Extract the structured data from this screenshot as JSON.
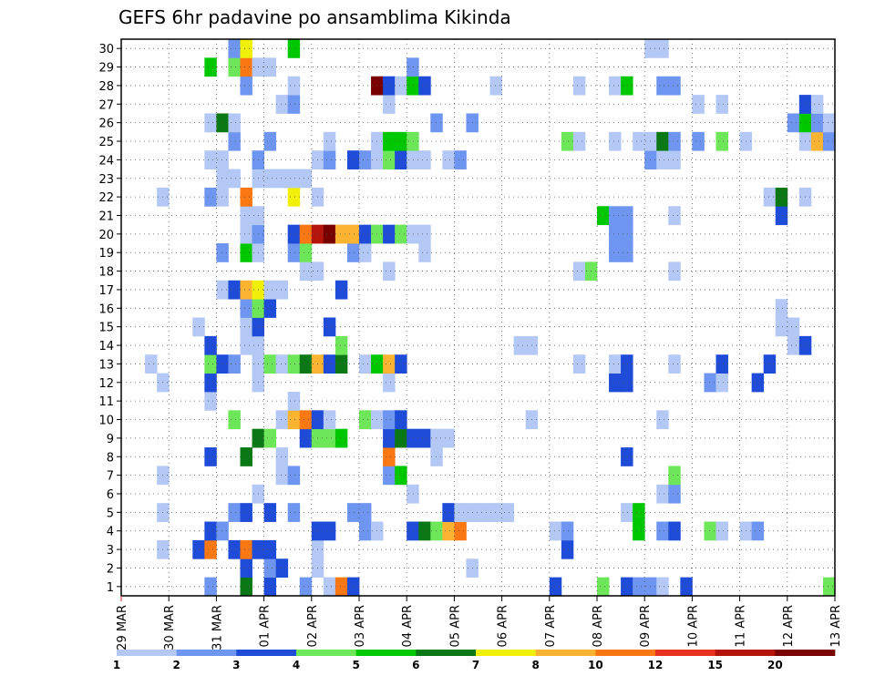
{
  "chart_data": {
    "type": "heatmap",
    "title": "GEFS 6hr padavine po ansamblima Kikinda",
    "xlabel": "",
    "ylabel": "",
    "x_ticks": [
      "29 MAR",
      "30 MAR",
      "31 MAR",
      "01 APR",
      "02 APR",
      "03 APR",
      "04 APR",
      "05 APR",
      "06 APR",
      "07 APR",
      "08 APR",
      "09 APR",
      "10 APR",
      "11 APR",
      "12 APR",
      "13 APR"
    ],
    "y_ticks": [
      1,
      2,
      3,
      4,
      5,
      6,
      7,
      8,
      9,
      10,
      11,
      12,
      13,
      14,
      15,
      16,
      17,
      18,
      19,
      20,
      21,
      22,
      23,
      24,
      25,
      26,
      27,
      28,
      29,
      30
    ],
    "xlim": [
      0,
      60
    ],
    "ylim": [
      0.5,
      30.5
    ],
    "grid": true,
    "legend": "colorbar-bottom",
    "colorbar": {
      "boundaries": [
        "1",
        "2",
        "3",
        "4",
        "5",
        "6",
        "7",
        "8",
        "10",
        "12",
        "15",
        "20"
      ],
      "colors": [
        "#b4c8f5",
        "#6e96f0",
        "#1e4bd7",
        "#6ee65a",
        "#00c800",
        "#0a7814",
        "#f0f00a",
        "#fab432",
        "#fa7814",
        "#e6321e",
        "#b4140a",
        "#780000"
      ]
    },
    "cells": [
      [
        1,
        8,
        2
      ],
      [
        1,
        11,
        6
      ],
      [
        1,
        13,
        3
      ],
      [
        1,
        16,
        2
      ],
      [
        1,
        18,
        1
      ],
      [
        1,
        19,
        9
      ],
      [
        1,
        20,
        3
      ],
      [
        1,
        37,
        3
      ],
      [
        1,
        41,
        4
      ],
      [
        1,
        43,
        3
      ],
      [
        1,
        44,
        2
      ],
      [
        1,
        45,
        2
      ],
      [
        1,
        46,
        1
      ],
      [
        1,
        48,
        3
      ],
      [
        1,
        60,
        4
      ],
      [
        2,
        11,
        3
      ],
      [
        2,
        13,
        2
      ],
      [
        2,
        14,
        3
      ],
      [
        2,
        17,
        1
      ],
      [
        2,
        30,
        1
      ],
      [
        3,
        4,
        1
      ],
      [
        3,
        7,
        3
      ],
      [
        3,
        8,
        9
      ],
      [
        3,
        10,
        3
      ],
      [
        3,
        11,
        9
      ],
      [
        3,
        12,
        3
      ],
      [
        3,
        13,
        3
      ],
      [
        3,
        17,
        1
      ],
      [
        3,
        38,
        3
      ],
      [
        4,
        8,
        3
      ],
      [
        4,
        9,
        2
      ],
      [
        4,
        17,
        3
      ],
      [
        4,
        18,
        3
      ],
      [
        4,
        21,
        2
      ],
      [
        4,
        22,
        1
      ],
      [
        4,
        25,
        3
      ],
      [
        4,
        26,
        6
      ],
      [
        4,
        27,
        4
      ],
      [
        4,
        28,
        8
      ],
      [
        4,
        29,
        9
      ],
      [
        4,
        37,
        1
      ],
      [
        4,
        38,
        2
      ],
      [
        4,
        44,
        5
      ],
      [
        4,
        46,
        2
      ],
      [
        4,
        47,
        3
      ],
      [
        4,
        50,
        4
      ],
      [
        4,
        51,
        1
      ],
      [
        4,
        53,
        1
      ],
      [
        4,
        54,
        2
      ],
      [
        5,
        4,
        1
      ],
      [
        5,
        10,
        2
      ],
      [
        5,
        11,
        3
      ],
      [
        5,
        13,
        3
      ],
      [
        5,
        15,
        2
      ],
      [
        5,
        20,
        2
      ],
      [
        5,
        21,
        2
      ],
      [
        5,
        28,
        3
      ],
      [
        5,
        29,
        1
      ],
      [
        5,
        30,
        1
      ],
      [
        5,
        31,
        1
      ],
      [
        5,
        32,
        1
      ],
      [
        5,
        33,
        1
      ],
      [
        5,
        43,
        1
      ],
      [
        5,
        44,
        5
      ],
      [
        6,
        12,
        1
      ],
      [
        6,
        25,
        1
      ],
      [
        6,
        46,
        1
      ],
      [
        6,
        47,
        2
      ],
      [
        7,
        4,
        1
      ],
      [
        7,
        14,
        1
      ],
      [
        7,
        15,
        2
      ],
      [
        7,
        23,
        2
      ],
      [
        7,
        24,
        5
      ],
      [
        7,
        47,
        4
      ],
      [
        8,
        8,
        3
      ],
      [
        8,
        11,
        6
      ],
      [
        8,
        14,
        1
      ],
      [
        8,
        23,
        9
      ],
      [
        8,
        27,
        1
      ],
      [
        8,
        43,
        3
      ],
      [
        9,
        12,
        6
      ],
      [
        9,
        13,
        4
      ],
      [
        9,
        16,
        3
      ],
      [
        9,
        17,
        4
      ],
      [
        9,
        18,
        4
      ],
      [
        9,
        19,
        5
      ],
      [
        9,
        23,
        3
      ],
      [
        9,
        24,
        6
      ],
      [
        9,
        25,
        3
      ],
      [
        9,
        26,
        3
      ],
      [
        9,
        27,
        1
      ],
      [
        9,
        28,
        1
      ],
      [
        10,
        10,
        4
      ],
      [
        10,
        14,
        1
      ],
      [
        10,
        15,
        8
      ],
      [
        10,
        16,
        9
      ],
      [
        10,
        17,
        3
      ],
      [
        10,
        18,
        1
      ],
      [
        10,
        21,
        4
      ],
      [
        10,
        22,
        1
      ],
      [
        10,
        23,
        2
      ],
      [
        10,
        24,
        3
      ],
      [
        10,
        35,
        1
      ],
      [
        10,
        46,
        1
      ],
      [
        11,
        8,
        1
      ],
      [
        11,
        15,
        1
      ],
      [
        12,
        4,
        1
      ],
      [
        12,
        8,
        3
      ],
      [
        12,
        12,
        1
      ],
      [
        12,
        23,
        1
      ],
      [
        12,
        42,
        3
      ],
      [
        12,
        43,
        3
      ],
      [
        12,
        50,
        2
      ],
      [
        12,
        51,
        1
      ],
      [
        12,
        54,
        3
      ],
      [
        13,
        3,
        1
      ],
      [
        13,
        8,
        4
      ],
      [
        13,
        9,
        3
      ],
      [
        13,
        10,
        2
      ],
      [
        13,
        12,
        1
      ],
      [
        13,
        13,
        4
      ],
      [
        13,
        14,
        1
      ],
      [
        13,
        15,
        4
      ],
      [
        13,
        16,
        6
      ],
      [
        13,
        17,
        8
      ],
      [
        13,
        18,
        3
      ],
      [
        13,
        19,
        6
      ],
      [
        13,
        21,
        1
      ],
      [
        13,
        22,
        5
      ],
      [
        13,
        23,
        8
      ],
      [
        13,
        24,
        3
      ],
      [
        13,
        39,
        1
      ],
      [
        13,
        42,
        1
      ],
      [
        13,
        43,
        3
      ],
      [
        13,
        47,
        1
      ],
      [
        13,
        51,
        3
      ],
      [
        13,
        55,
        3
      ],
      [
        14,
        8,
        3
      ],
      [
        14,
        11,
        1
      ],
      [
        14,
        12,
        1
      ],
      [
        14,
        19,
        4
      ],
      [
        14,
        34,
        1
      ],
      [
        14,
        35,
        1
      ],
      [
        14,
        57,
        1
      ],
      [
        14,
        58,
        3
      ],
      [
        15,
        7,
        1
      ],
      [
        15,
        11,
        1
      ],
      [
        15,
        12,
        3
      ],
      [
        15,
        18,
        3
      ],
      [
        15,
        56,
        1
      ],
      [
        15,
        57,
        1
      ],
      [
        16,
        11,
        2
      ],
      [
        16,
        12,
        4
      ],
      [
        16,
        13,
        3
      ],
      [
        16,
        56,
        1
      ],
      [
        17,
        9,
        1
      ],
      [
        17,
        10,
        3
      ],
      [
        17,
        11,
        8
      ],
      [
        17,
        12,
        7
      ],
      [
        17,
        13,
        1
      ],
      [
        17,
        14,
        1
      ],
      [
        17,
        19,
        3
      ],
      [
        18,
        16,
        1
      ],
      [
        18,
        17,
        1
      ],
      [
        18,
        23,
        1
      ],
      [
        18,
        39,
        1
      ],
      [
        18,
        40,
        4
      ],
      [
        18,
        47,
        1
      ],
      [
        19,
        9,
        2
      ],
      [
        19,
        11,
        5
      ],
      [
        19,
        12,
        1
      ],
      [
        19,
        15,
        2
      ],
      [
        19,
        16,
        4
      ],
      [
        19,
        20,
        2
      ],
      [
        19,
        21,
        1
      ],
      [
        19,
        26,
        1
      ],
      [
        19,
        42,
        2
      ],
      [
        19,
        43,
        2
      ],
      [
        20,
        11,
        1
      ],
      [
        20,
        12,
        2
      ],
      [
        20,
        15,
        3
      ],
      [
        20,
        16,
        9
      ],
      [
        20,
        17,
        11
      ],
      [
        20,
        18,
        12
      ],
      [
        20,
        19,
        8
      ],
      [
        20,
        20,
        8
      ],
      [
        20,
        21,
        3
      ],
      [
        20,
        22,
        4
      ],
      [
        20,
        23,
        3
      ],
      [
        20,
        24,
        4
      ],
      [
        20,
        25,
        1
      ],
      [
        20,
        26,
        1
      ],
      [
        20,
        42,
        2
      ],
      [
        20,
        43,
        2
      ],
      [
        21,
        11,
        1
      ],
      [
        21,
        12,
        1
      ],
      [
        21,
        41,
        5
      ],
      [
        21,
        42,
        2
      ],
      [
        21,
        43,
        2
      ],
      [
        21,
        47,
        1
      ],
      [
        21,
        56,
        3
      ],
      [
        22,
        4,
        1
      ],
      [
        22,
        8,
        2
      ],
      [
        22,
        9,
        1
      ],
      [
        22,
        11,
        9
      ],
      [
        22,
        15,
        7
      ],
      [
        22,
        17,
        1
      ],
      [
        22,
        55,
        1
      ],
      [
        22,
        56,
        6
      ],
      [
        22,
        58,
        1
      ],
      [
        23,
        9,
        1
      ],
      [
        23,
        10,
        1
      ],
      [
        23,
        12,
        1
      ],
      [
        23,
        13,
        1
      ],
      [
        23,
        14,
        1
      ],
      [
        23,
        15,
        1
      ],
      [
        23,
        16,
        1
      ],
      [
        24,
        8,
        1
      ],
      [
        24,
        9,
        1
      ],
      [
        24,
        12,
        2
      ],
      [
        24,
        17,
        1
      ],
      [
        24,
        18,
        2
      ],
      [
        24,
        20,
        3
      ],
      [
        24,
        21,
        2
      ],
      [
        24,
        22,
        1
      ],
      [
        24,
        23,
        4
      ],
      [
        24,
        24,
        3
      ],
      [
        24,
        25,
        1
      ],
      [
        24,
        26,
        1
      ],
      [
        24,
        28,
        1
      ],
      [
        24,
        29,
        2
      ],
      [
        24,
        45,
        2
      ],
      [
        24,
        46,
        1
      ],
      [
        24,
        47,
        1
      ],
      [
        25,
        10,
        2
      ],
      [
        25,
        13,
        2
      ],
      [
        25,
        18,
        1
      ],
      [
        25,
        22,
        1
      ],
      [
        25,
        23,
        5
      ],
      [
        25,
        24,
        5
      ],
      [
        25,
        25,
        4
      ],
      [
        25,
        38,
        4
      ],
      [
        25,
        39,
        1
      ],
      [
        25,
        42,
        1
      ],
      [
        25,
        44,
        1
      ],
      [
        25,
        45,
        1
      ],
      [
        25,
        46,
        6
      ],
      [
        25,
        47,
        2
      ],
      [
        25,
        49,
        2
      ],
      [
        25,
        51,
        4
      ],
      [
        25,
        53,
        1
      ],
      [
        25,
        58,
        1
      ],
      [
        25,
        59,
        8
      ],
      [
        25,
        60,
        2
      ],
      [
        26,
        8,
        1
      ],
      [
        26,
        9,
        6
      ],
      [
        26,
        10,
        1
      ],
      [
        26,
        27,
        2
      ],
      [
        26,
        30,
        2
      ],
      [
        26,
        57,
        2
      ],
      [
        26,
        58,
        5
      ],
      [
        26,
        59,
        2
      ],
      [
        26,
        60,
        1
      ],
      [
        27,
        14,
        1
      ],
      [
        27,
        15,
        2
      ],
      [
        27,
        23,
        1
      ],
      [
        27,
        49,
        1
      ],
      [
        27,
        51,
        1
      ],
      [
        27,
        58,
        3
      ],
      [
        27,
        59,
        1
      ],
      [
        28,
        11,
        2
      ],
      [
        28,
        15,
        1
      ],
      [
        28,
        22,
        12
      ],
      [
        28,
        23,
        3
      ],
      [
        28,
        24,
        1
      ],
      [
        28,
        25,
        5
      ],
      [
        28,
        26,
        3
      ],
      [
        28,
        32,
        1
      ],
      [
        28,
        39,
        1
      ],
      [
        28,
        42,
        1
      ],
      [
        28,
        43,
        5
      ],
      [
        28,
        46,
        2
      ],
      [
        28,
        47,
        2
      ],
      [
        29,
        8,
        5
      ],
      [
        29,
        10,
        4
      ],
      [
        29,
        11,
        9
      ],
      [
        29,
        12,
        1
      ],
      [
        29,
        13,
        1
      ],
      [
        29,
        25,
        2
      ],
      [
        30,
        10,
        2
      ],
      [
        30,
        11,
        7
      ],
      [
        30,
        15,
        5
      ],
      [
        30,
        45,
        1
      ],
      [
        30,
        46,
        1
      ]
    ]
  }
}
